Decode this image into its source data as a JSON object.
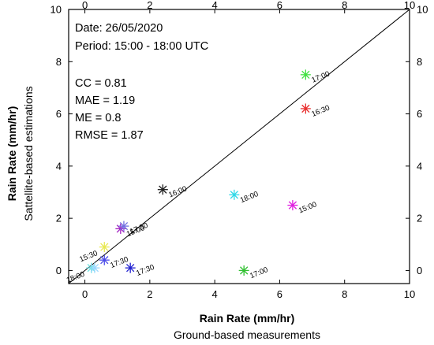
{
  "chart_data": {
    "type": "scatter",
    "info": {
      "date": "Date: 26/05/2020",
      "period": "Period: 15:00 - 18:00 UTC",
      "cc": "CC = 0.81",
      "mae": "MAE = 1.19",
      "me": "ME = 0.8",
      "rmse": "RMSE = 1.87"
    },
    "xlabel": "Rain Rate (mm/hr)",
    "xlabel2": "Ground-based measurements",
    "ylabel": "Rain Rate (mm/hr)",
    "ylabel2": "Sattellite-based estimations",
    "xlim": [
      -0.5,
      10
    ],
    "ylim": [
      -0.5,
      10
    ],
    "xticks": [
      "0",
      "2",
      "4",
      "6",
      "8",
      "10"
    ],
    "yticks": [
      "0",
      "2",
      "4",
      "6",
      "8",
      "10"
    ],
    "reference_line": "1:1",
    "points": [
      {
        "x": 0.2,
        "y": 0.1,
        "label": "18:00",
        "color": "#66e0e0",
        "anchor": "end"
      },
      {
        "x": 0.3,
        "y": 0.1,
        "label": "",
        "color": "#9ad7ff",
        "anchor": "end"
      },
      {
        "x": 0.6,
        "y": 0.4,
        "label": "17:30",
        "color": "#4a4ae8",
        "anchor": "start"
      },
      {
        "x": 0.6,
        "y": 0.9,
        "label": "15:30",
        "color": "#e8e850",
        "anchor": "end"
      },
      {
        "x": 1.1,
        "y": 1.6,
        "label": "15:00",
        "color": "#a020c0",
        "anchor": "start"
      },
      {
        "x": 1.2,
        "y": 1.7,
        "label": "17:30",
        "color": "#7070e0",
        "anchor": "start"
      },
      {
        "x": 1.4,
        "y": 0.1,
        "label": "17:30",
        "color": "#2020d0",
        "anchor": "start"
      },
      {
        "x": 2.4,
        "y": 3.1,
        "label": "16:00",
        "color": "#202020",
        "anchor": "start"
      },
      {
        "x": 4.6,
        "y": 2.9,
        "label": "18:00",
        "color": "#30d8e8",
        "anchor": "start"
      },
      {
        "x": 4.9,
        "y": 0.0,
        "label": "17:00",
        "color": "#30c030",
        "anchor": "start"
      },
      {
        "x": 6.4,
        "y": 2.5,
        "label": "15:00",
        "color": "#e020e0",
        "anchor": "start"
      },
      {
        "x": 6.8,
        "y": 6.2,
        "label": "16:30",
        "color": "#e83030",
        "anchor": "start"
      },
      {
        "x": 6.8,
        "y": 7.5,
        "label": "17:00",
        "color": "#40e040",
        "anchor": "start"
      }
    ],
    "extra_labels": [
      {
        "x": 0.1,
        "y": 0.1,
        "text": "18:00"
      },
      {
        "x": 0.0,
        "y": 0.0,
        "text": ""
      }
    ]
  }
}
